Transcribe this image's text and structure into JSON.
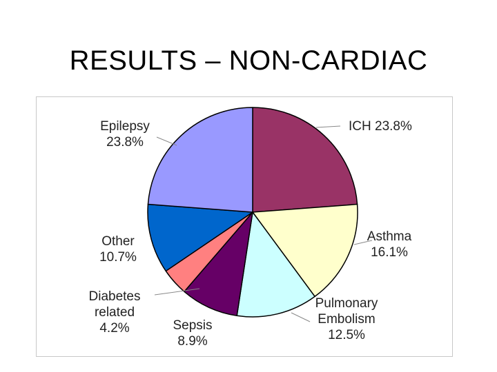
{
  "slide": {
    "title": "RESULTS – NON-CARDIAC"
  },
  "chart_data": {
    "type": "pie",
    "title": "",
    "slices": [
      {
        "name": "ICH",
        "value": 23.8,
        "display": [
          "ICH 23.8%"
        ],
        "color": "#993366"
      },
      {
        "name": "Asthma",
        "value": 16.1,
        "display": [
          "Asthma",
          "16.1%"
        ],
        "color": "#FFFFCC"
      },
      {
        "name": "Pulmonary Embolism",
        "value": 12.5,
        "display": [
          "Pulmonary",
          "Embolism",
          "12.5%"
        ],
        "color": "#CCFFFF"
      },
      {
        "name": "Sepsis",
        "value": 8.9,
        "display": [
          "Sepsis",
          "8.9%"
        ],
        "color": "#660066"
      },
      {
        "name": "Diabetes related",
        "value": 4.2,
        "display": [
          "Diabetes",
          "related",
          "4.2%"
        ],
        "color": "#FF8080"
      },
      {
        "name": "Other",
        "value": 10.7,
        "display": [
          "Other",
          "10.7%"
        ],
        "color": "#0066CC"
      },
      {
        "name": "Epilepsy",
        "value": 23.8,
        "display": [
          "Epilepsy",
          "23.8%"
        ],
        "color": "#9999FF"
      }
    ],
    "start_angle_deg": 0,
    "direction": "clockwise"
  }
}
